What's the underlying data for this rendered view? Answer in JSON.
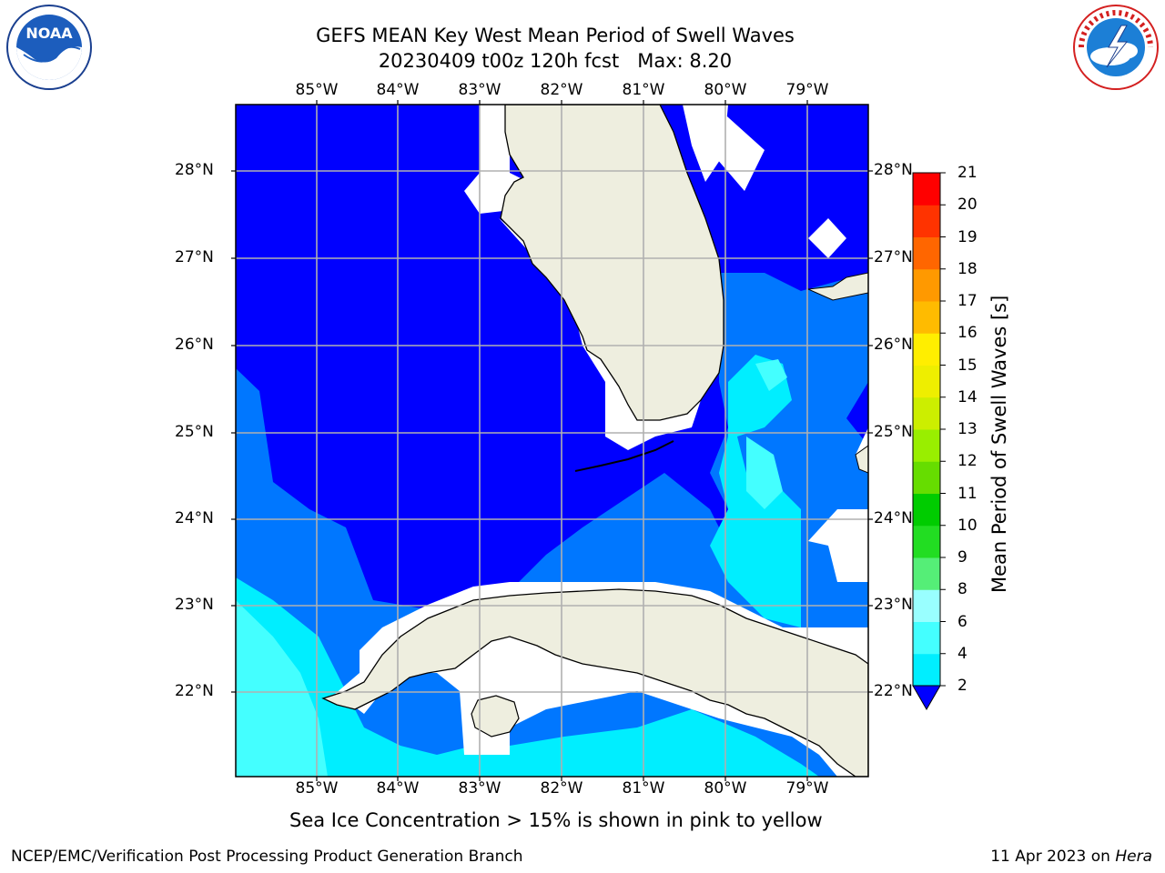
{
  "title": {
    "line1": "GEFS MEAN Key West Mean Period of Swell Waves",
    "line2": "20230409 t00z 120h fcst   Max: 8.20"
  },
  "map": {
    "lon_labels": [
      "85°W",
      "84°W",
      "83°W",
      "82°W",
      "81°W",
      "80°W",
      "79°W"
    ],
    "lat_labels": [
      "28°N",
      "27°N",
      "26°N",
      "25°N",
      "24°N",
      "23°N",
      "22°N"
    ],
    "colors": {
      "land": "#eeeedf",
      "ocean_2_4": "#0000ff",
      "ocean_4_6": "#0077ff",
      "ocean_6_8": "#00eeff",
      "ocean_8_9": "#44ffff",
      "grid": "#b0b0b0"
    }
  },
  "colorbar": {
    "label": "Mean Period of Swell Waves [s]",
    "ticks": [
      "2",
      "4",
      "6",
      "8",
      "9",
      "10",
      "11",
      "12",
      "13",
      "14",
      "15",
      "16",
      "17",
      "18",
      "19",
      "20",
      "21"
    ],
    "colors": [
      "#0077ff",
      "#00eeff",
      "#44ffff",
      "#99ffff",
      "#55ee77",
      "#22dd22",
      "#00cc00",
      "#66dd00",
      "#99ee00",
      "#ccee00",
      "#eeee00",
      "#ffee00",
      "#ffbb00",
      "#ff9900",
      "#ff6600",
      "#ff3300",
      "#ff0000"
    ]
  },
  "note": "Sea Ice Concentration > 15% is shown in pink to yellow",
  "footer": {
    "left": "NCEP/EMC/Verification Post Processing Product Generation Branch",
    "right_date": "11 Apr 2023 on ",
    "right_host": "Hera"
  },
  "logos": {
    "noaa": "NOAA",
    "nws": "NATIONAL WEATHER SERVICE"
  }
}
